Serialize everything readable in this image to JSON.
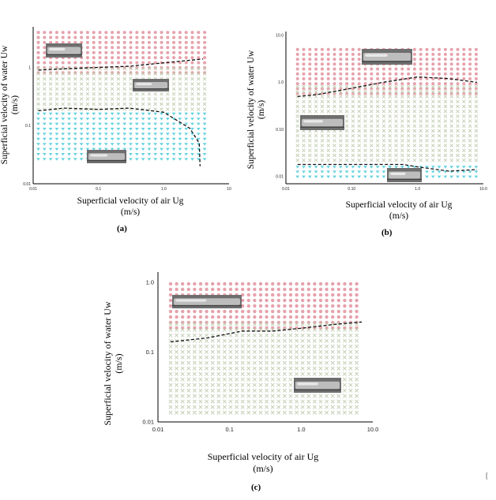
{
  "chart_data": [
    {
      "type": "scatter",
      "panel_label": "(a)",
      "xlabel": "Superficial velocity of air Ug",
      "xunit": "(m/s)",
      "ylabel": "Superficial velocity of water Uw",
      "yunit": "(m/s)",
      "x_scale": "log",
      "y_scale": "log",
      "xlim": [
        0.01,
        10
      ],
      "ylim": [
        0.01,
        5
      ],
      "x_ticks": [
        "0.01",
        "0.1",
        "1.0",
        "10"
      ],
      "y_ticks": [
        "0.01",
        "0.1",
        "1"
      ],
      "grid": false,
      "series": [
        {
          "marker": "circle",
          "color": "#e6a2ac",
          "x_range": [
            0.012,
            5.0
          ],
          "y_range": [
            0.8,
            4.0
          ]
        },
        {
          "marker": "x",
          "color": "#c2cdb2",
          "x_range": [
            0.012,
            5.0
          ],
          "y_range": [
            0.17,
            0.95
          ]
        },
        {
          "marker": "triangle-down",
          "color": "#64d2de",
          "x_range": [
            0.012,
            5.0
          ],
          "y_range": [
            0.022,
            0.16
          ]
        }
      ],
      "boundaries": [
        {
          "style": "dashed",
          "points": [
            [
              0.012,
              0.9
            ],
            [
              0.03,
              0.95
            ],
            [
              0.1,
              1.0
            ],
            [
              0.3,
              1.05
            ],
            [
              1.0,
              1.2
            ],
            [
              4.0,
              1.4
            ]
          ]
        },
        {
          "style": "dashed",
          "points": [
            [
              0.012,
              0.18
            ],
            [
              0.03,
              0.2
            ],
            [
              0.1,
              0.19
            ],
            [
              0.3,
              0.2
            ],
            [
              1.0,
              0.17
            ],
            [
              2.5,
              0.09
            ],
            [
              3.5,
              0.05
            ],
            [
              3.6,
              0.02
            ]
          ]
        }
      ]
    },
    {
      "type": "scatter",
      "panel_label": "(b)",
      "xlabel": "Superficial velocity of air Ug",
      "xunit": "(m/s)",
      "ylabel": "Superficial velocity of water Uw",
      "yunit": "(m/s)",
      "x_scale": "log",
      "y_scale": "log",
      "xlim": [
        0.01,
        10
      ],
      "ylim": [
        0.007,
        12
      ],
      "x_ticks": [
        "0.01",
        "0.10",
        "1.0",
        "10.0"
      ],
      "y_ticks": [
        "0.01",
        "0.10",
        "1.0",
        "10.0"
      ],
      "grid": false,
      "series": [
        {
          "marker": "circle",
          "color": "#e6a2ac",
          "x_range": [
            0.015,
            8.0
          ],
          "y_range": [
            0.5,
            5.0
          ]
        },
        {
          "marker": "x",
          "color": "#c2cdb2",
          "x_range": [
            0.015,
            8.0
          ],
          "y_range": [
            0.018,
            0.8
          ]
        },
        {
          "marker": "triangle-down",
          "color": "#64d2de",
          "x_range": [
            0.015,
            8.0
          ],
          "y_range": [
            0.009,
            0.016
          ]
        }
      ],
      "boundaries": [
        {
          "style": "dashed",
          "points": [
            [
              0.015,
              0.5
            ],
            [
              0.03,
              0.55
            ],
            [
              0.1,
              0.75
            ],
            [
              0.3,
              1.0
            ],
            [
              1.0,
              1.3
            ],
            [
              3.0,
              1.2
            ],
            [
              8.0,
              1.0
            ]
          ]
        },
        {
          "style": "dashed",
          "points": [
            [
              0.015,
              0.018
            ],
            [
              0.1,
              0.018
            ],
            [
              0.6,
              0.018
            ],
            [
              1.0,
              0.016
            ],
            [
              3.0,
              0.013
            ],
            [
              8.0,
              0.014
            ]
          ]
        }
      ]
    },
    {
      "type": "scatter",
      "panel_label": "(c)",
      "xlabel": "Superficial velocity of air Ug",
      "xunit": "(m/s)",
      "ylabel": "Superficial velocity of water Uw",
      "yunit": "(m/s)",
      "x_scale": "log",
      "y_scale": "log",
      "xlim": [
        0.01,
        10
      ],
      "ylim": [
        0.01,
        1.4
      ],
      "x_ticks": [
        "0.01",
        "0.1",
        "1.0",
        "10.0"
      ],
      "y_ticks": [
        "0.01",
        "0.1",
        "1.0"
      ],
      "grid": false,
      "series": [
        {
          "marker": "circle",
          "color": "#e6a2ac",
          "x_range": [
            0.015,
            7.0
          ],
          "y_range": [
            0.2,
            0.95
          ]
        },
        {
          "marker": "x",
          "color": "#c2cdb2",
          "x_range": [
            0.015,
            7.0
          ],
          "y_range": [
            0.013,
            0.25
          ]
        }
      ],
      "boundaries": [
        {
          "style": "dashed",
          "points": [
            [
              0.015,
              0.14
            ],
            [
              0.05,
              0.16
            ],
            [
              0.15,
              0.2
            ],
            [
              0.4,
              0.2
            ],
            [
              1.0,
              0.22
            ],
            [
              3.0,
              0.25
            ],
            [
              7.0,
              0.27
            ]
          ]
        }
      ]
    }
  ],
  "corner_mark": "["
}
